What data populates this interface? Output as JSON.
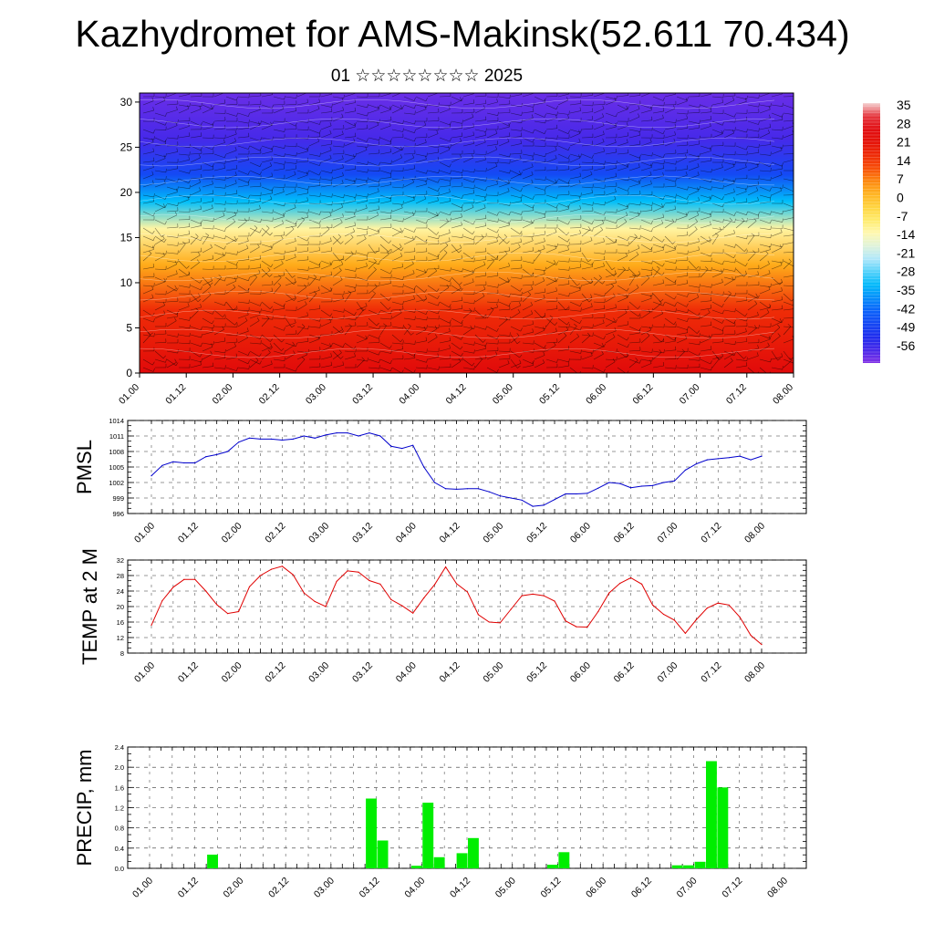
{
  "title": "Kazhydromet for AMS-Makinsk(52.611 70.434)",
  "subtitle": "01 ☆☆☆☆☆☆☆☆ 2025",
  "x_ticks": [
    "01.00",
    "01.12",
    "02.00",
    "02.12",
    "03.00",
    "03.12",
    "04.00",
    "04.12",
    "05.00",
    "05.12",
    "06.00",
    "06.12",
    "07.00",
    "07.12",
    "08.00"
  ],
  "colors": {
    "pmsl_line": "#0000cc",
    "temp_line": "#e00000",
    "precip_bar": "#00ee00"
  },
  "chart_data": [
    {
      "type": "heatmap",
      "title": "",
      "xlabel": "",
      "ylabel": "",
      "y_ticks": [
        "0",
        "5",
        "10",
        "15",
        "20",
        "25",
        "30"
      ],
      "ylim": [
        0,
        31
      ],
      "colorbar_ticks": [
        "35",
        "28",
        "21",
        "14",
        "7",
        "0",
        "-7",
        "-14",
        "-21",
        "-28",
        "-35",
        "-42",
        "-49",
        "-56"
      ],
      "colorbar_range": [
        -60,
        38
      ],
      "series": [
        {
          "values": [
            {
              "level": 0,
              "t": 25
            },
            {
              "level": 7,
              "t": 18
            },
            {
              "level": 12,
              "t": 5
            },
            {
              "level": 16,
              "t": -10
            },
            {
              "level": 19,
              "t": -30
            },
            {
              "level": 22,
              "t": -45
            },
            {
              "level": 26,
              "t": -55
            },
            {
              "level": 31,
              "t": -58
            }
          ]
        }
      ],
      "overlay": "wind barbs"
    },
    {
      "type": "line",
      "ylabel": "PMSL",
      "ylim": [
        996,
        1014
      ],
      "y_ticks": [
        "996",
        "999",
        "1002",
        "1005",
        "1008",
        "1011",
        "1014"
      ],
      "x_index": [
        0,
        1,
        2,
        3,
        4,
        5,
        6,
        7,
        8,
        9,
        10,
        11,
        12,
        13,
        14,
        15,
        16,
        17,
        18,
        19,
        20,
        21,
        22,
        23,
        24,
        25,
        26,
        27,
        28,
        29,
        30,
        31,
        32,
        33,
        34,
        35,
        36,
        37,
        38,
        39,
        40,
        41,
        42,
        43,
        44,
        45,
        46,
        47,
        48,
        49,
        50,
        51,
        52,
        53,
        54,
        55,
        56
      ],
      "values": [
        1003.3,
        1005.3,
        1006,
        1005.8,
        1005.8,
        1007,
        1007.4,
        1008,
        1009.8,
        1010.6,
        1010.4,
        1010.4,
        1010.2,
        1010.4,
        1011,
        1010.6,
        1011.2,
        1011.6,
        1011.6,
        1011,
        1011.6,
        1011,
        1009,
        1008.6,
        1009.2,
        1005,
        1002,
        1000.8,
        1000.7,
        1000.8,
        1000.8,
        1000.2,
        999.4,
        999,
        998.6,
        997.4,
        997.6,
        998.7,
        999.8,
        999.8,
        999.9,
        1000.9,
        1002,
        1001.8,
        1001,
        1001.3,
        1001.4,
        1002,
        1002.3,
        1004.4,
        1005.6,
        1006.4,
        1006.6,
        1006.8,
        1007.1,
        1006.4,
        1007.1
      ]
    },
    {
      "type": "line",
      "ylabel": "TEMP at 2 M",
      "ylim": [
        8,
        32
      ],
      "y_ticks": [
        "8",
        "12",
        "16",
        "20",
        "24",
        "28",
        "32"
      ],
      "x_index": [
        0,
        1,
        2,
        3,
        4,
        5,
        6,
        7,
        8,
        9,
        10,
        11,
        12,
        13,
        14,
        15,
        16,
        17,
        18,
        19,
        20,
        21,
        22,
        23,
        24,
        25,
        26,
        27,
        28,
        29,
        30,
        31,
        32,
        33,
        34,
        35,
        36,
        37,
        38,
        39,
        40,
        41,
        42,
        43,
        44,
        45,
        46,
        47,
        48,
        49,
        50,
        51,
        52,
        53,
        54,
        55,
        56
      ],
      "values": [
        15.2,
        21.5,
        25,
        27,
        27,
        24,
        20.5,
        18.2,
        18.7,
        25.1,
        28,
        29.6,
        30.4,
        28.2,
        23.5,
        21.3,
        20,
        26.5,
        29.2,
        28.9,
        26.7,
        25.8,
        21.8,
        20.2,
        18.3,
        22.2,
        25.7,
        30.2,
        25.9,
        23.8,
        17.9,
        16,
        15.8,
        19.3,
        22.8,
        23.2,
        22.8,
        21.4,
        16.3,
        14.8,
        14.7,
        18.7,
        23.5,
        26,
        27.4,
        25.8,
        20.4,
        18,
        16.5,
        13.1,
        16.6,
        19.6,
        20.9,
        20.4,
        17.3,
        12.6,
        10.2
      ]
    },
    {
      "type": "bar",
      "ylabel": "PRECIP, mm",
      "ylim": [
        0,
        2.4
      ],
      "y_ticks": [
        "0.0",
        "0.4",
        "0.8",
        "1.2",
        "1.6",
        "2.0",
        "2.4"
      ],
      "x_index": [
        0,
        1,
        2,
        3,
        4,
        5,
        6,
        7,
        8,
        9,
        10,
        11,
        12,
        13,
        14,
        15,
        16,
        17,
        18,
        19,
        20,
        21,
        22,
        23,
        24,
        25,
        26,
        27,
        28,
        29,
        30,
        31,
        32,
        33,
        34,
        35,
        36,
        37,
        38,
        39,
        40,
        41,
        42,
        43,
        44,
        45,
        46,
        47,
        48,
        49,
        50,
        51,
        52,
        53,
        54,
        55,
        56
      ],
      "values": [
        0,
        0,
        0,
        0,
        0,
        0.27,
        0,
        0,
        0,
        0,
        0,
        0,
        0,
        0,
        0,
        0,
        0,
        0,
        0,
        1.38,
        0.55,
        0,
        0,
        0.05,
        1.3,
        0.22,
        0,
        0.3,
        0.6,
        0,
        0,
        0,
        0,
        0,
        0,
        0.07,
        0.32,
        0,
        0,
        0,
        0,
        0,
        0,
        0,
        0,
        0,
        0.06,
        0.06,
        0.13,
        2.12,
        1.6,
        0,
        0,
        0,
        0,
        0,
        0
      ]
    }
  ]
}
